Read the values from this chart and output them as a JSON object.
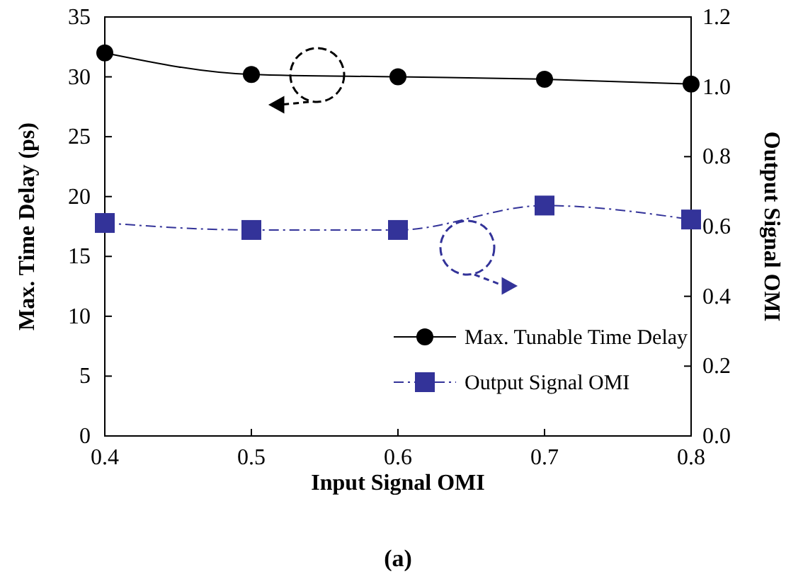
{
  "chart_data": {
    "type": "line",
    "xlabel": "Input Signal OMI",
    "ylabel": "Max. Time Delay (ps)",
    "y2label": "Output Signal OMI",
    "x": [
      0.4,
      0.5,
      0.6,
      0.7,
      0.8
    ],
    "series": [
      {
        "name": "Max. Tunable Time Delay",
        "color": "#000000",
        "marker": "circle",
        "line_style": "solid",
        "values": [
          32.0,
          30.2,
          30.0,
          29.8,
          29.4
        ]
      },
      {
        "name": "Output Signal OMI",
        "color": "#333399",
        "marker": "square",
        "line_style": "dashed",
        "axis": "y2",
        "values": [
          0.61,
          0.59,
          0.59,
          0.66,
          0.62
        ]
      }
    ],
    "xlim": [
      0.4,
      0.8
    ],
    "xticks": [
      {
        "value": 0.4,
        "label": "0.4"
      },
      {
        "value": 0.5,
        "label": "0.5"
      },
      {
        "value": 0.6,
        "label": "0.6"
      },
      {
        "value": 0.7,
        "label": "0.7"
      },
      {
        "value": 0.8,
        "label": "0.8"
      }
    ],
    "ylim": [
      0,
      35
    ],
    "yticks": [
      0,
      5,
      10,
      15,
      20,
      25,
      30,
      35
    ],
    "y2lim": [
      0,
      1.2
    ],
    "y2ticks": [
      {
        "value": 0,
        "label": "0.0"
      },
      {
        "value": 0.2,
        "label": "0.2"
      },
      {
        "value": 0.4,
        "label": "0.4"
      },
      {
        "value": 0.6,
        "label": "0.6"
      },
      {
        "value": 0.8,
        "label": "0.8"
      },
      {
        "value": 1.0,
        "label": "1.0"
      },
      {
        "value": 1.2,
        "label": "1.2"
      }
    ],
    "grid": false,
    "legend": "bottom right",
    "annotations": [
      "(a)"
    ]
  }
}
